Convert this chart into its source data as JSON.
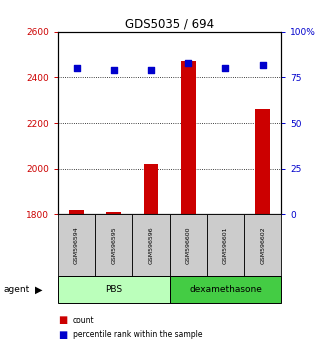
{
  "title": "GDS5035 / 694",
  "samples": [
    "GSM596594",
    "GSM596595",
    "GSM596596",
    "GSM596600",
    "GSM596601",
    "GSM596602"
  ],
  "counts": [
    1820,
    1810,
    2020,
    2470,
    1800,
    2260
  ],
  "percentiles": [
    80,
    79,
    79,
    83,
    80,
    82
  ],
  "ylim_left": [
    1800,
    2600
  ],
  "ylim_right": [
    0,
    100
  ],
  "yticks_left": [
    1800,
    2000,
    2200,
    2400,
    2600
  ],
  "yticks_right": [
    0,
    25,
    50,
    75,
    100
  ],
  "groups": [
    {
      "label": "PBS",
      "start": 0,
      "end": 3,
      "color": "#bbffbb"
    },
    {
      "label": "dexamethasone",
      "start": 3,
      "end": 6,
      "color": "#44cc44"
    }
  ],
  "bar_color": "#cc0000",
  "dot_color": "#0000cc",
  "bar_width": 0.4,
  "grid_color": "#000000",
  "background_color": "#ffffff",
  "sample_box_color": "#cccccc",
  "left_label_color": "#cc0000",
  "right_label_color": "#0000cc",
  "title_color": "#000000",
  "legend_items": [
    {
      "label": "count",
      "color": "#cc0000"
    },
    {
      "label": "percentile rank within the sample",
      "color": "#0000cc"
    }
  ]
}
